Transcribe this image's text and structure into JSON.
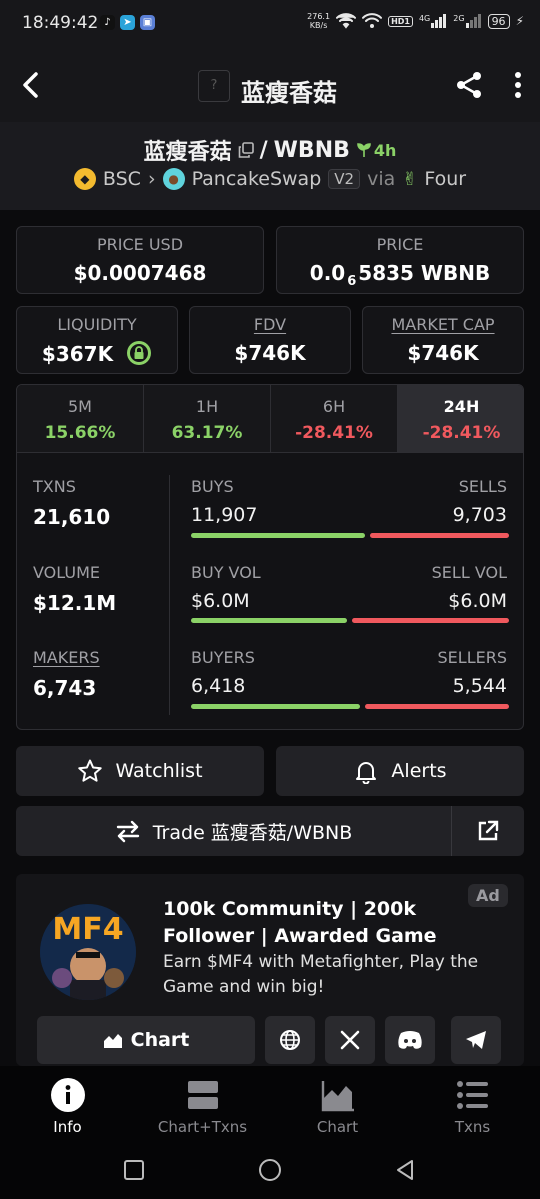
{
  "status_bar": {
    "time": "18:49:42",
    "net_speed_value": "276.1",
    "net_speed_unit": "KB/s",
    "hd": "HD1",
    "net_4g": "4G",
    "net_2g": "2G",
    "battery": "96"
  },
  "topbar": {
    "token_placeholder": "?",
    "title": "蓝瘦香菇"
  },
  "pair": {
    "base": "蓝瘦香菇",
    "separator": "/",
    "quote": "WBNB",
    "age": "4h",
    "chain": "BSC",
    "dex": "PancakeSwap",
    "dex_version": "V2",
    "via": "via",
    "launchpad": "Four"
  },
  "prices": {
    "price_usd_label": "PRICE USD",
    "price_usd": "$0.0007468",
    "price_label": "PRICE",
    "price_prefix": "0.0",
    "price_subscript": "6",
    "price_suffix": "5835 WBNB"
  },
  "metrics": {
    "liquidity_label": "LIQUIDITY",
    "liquidity": "$367K",
    "fdv_label": "FDV",
    "fdv": "$746K",
    "mcap_label": "MARKET CAP",
    "mcap": "$746K"
  },
  "timeframes": [
    {
      "label": "5M",
      "change": "15.66%"
    },
    {
      "label": "1H",
      "change": "63.17%"
    },
    {
      "label": "6H",
      "change": "-28.41%"
    },
    {
      "label": "24H",
      "change": "-28.41%"
    }
  ],
  "stats": {
    "txns_label": "TXNS",
    "txns": "21,610",
    "buys_label": "BUYS",
    "buys": "11,907",
    "sells_label": "SELLS",
    "sells": "9,703",
    "volume_label": "VOLUME",
    "volume": "$12.1M",
    "buy_vol_label": "BUY VOL",
    "buy_vol": "$6.0M",
    "sell_vol_label": "SELL VOL",
    "sell_vol": "$6.0M",
    "makers_label": "MAKERS",
    "makers": "6,743",
    "buyers_label": "BUYERS",
    "buyers": "6,418",
    "sellers_label": "SELLERS",
    "sellers": "5,544"
  },
  "actions": {
    "watchlist": "Watchlist",
    "alerts": "Alerts",
    "trade": "Trade 蓝瘦香菇/WBNB"
  },
  "ad": {
    "badge": "Ad",
    "logo_text": "MF4",
    "title": "100k Community | 200k Follower | Awarded Game",
    "description": "Earn $MF4 with Metafighter, Play the Game and win big!",
    "chart_button": "Chart"
  },
  "bottom_nav": [
    {
      "label": "Info",
      "icon": "info-icon"
    },
    {
      "label": "Chart+Txns",
      "icon": "chart-txns-icon"
    },
    {
      "label": "Chart",
      "icon": "area-chart-icon"
    },
    {
      "label": "Txns",
      "icon": "list-icon"
    }
  ],
  "colors": {
    "positive": "#8bd267",
    "negative": "#f0595e",
    "background": "#0b0b0d",
    "card": "#141417"
  }
}
